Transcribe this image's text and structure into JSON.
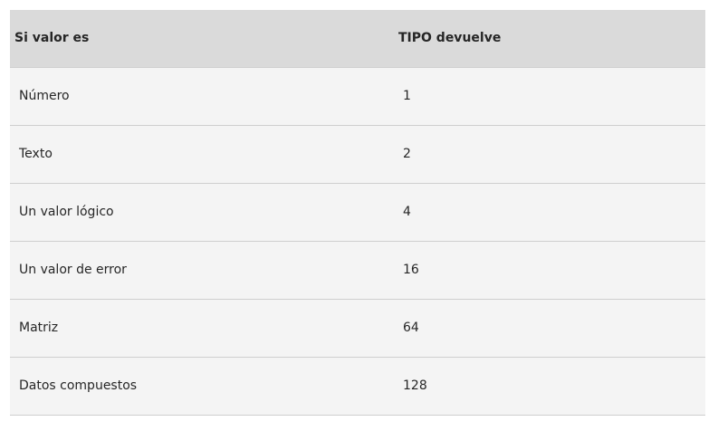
{
  "table": {
    "headers": [
      "Si valor es",
      "TIPO devuelve"
    ],
    "rows": [
      [
        "Número",
        "1"
      ],
      [
        "Texto",
        "2"
      ],
      [
        "Un valor lógico",
        "4"
      ],
      [
        "Un valor de error",
        "16"
      ],
      [
        "Matriz",
        "64"
      ],
      [
        "Datos compuestos",
        "128"
      ]
    ]
  }
}
